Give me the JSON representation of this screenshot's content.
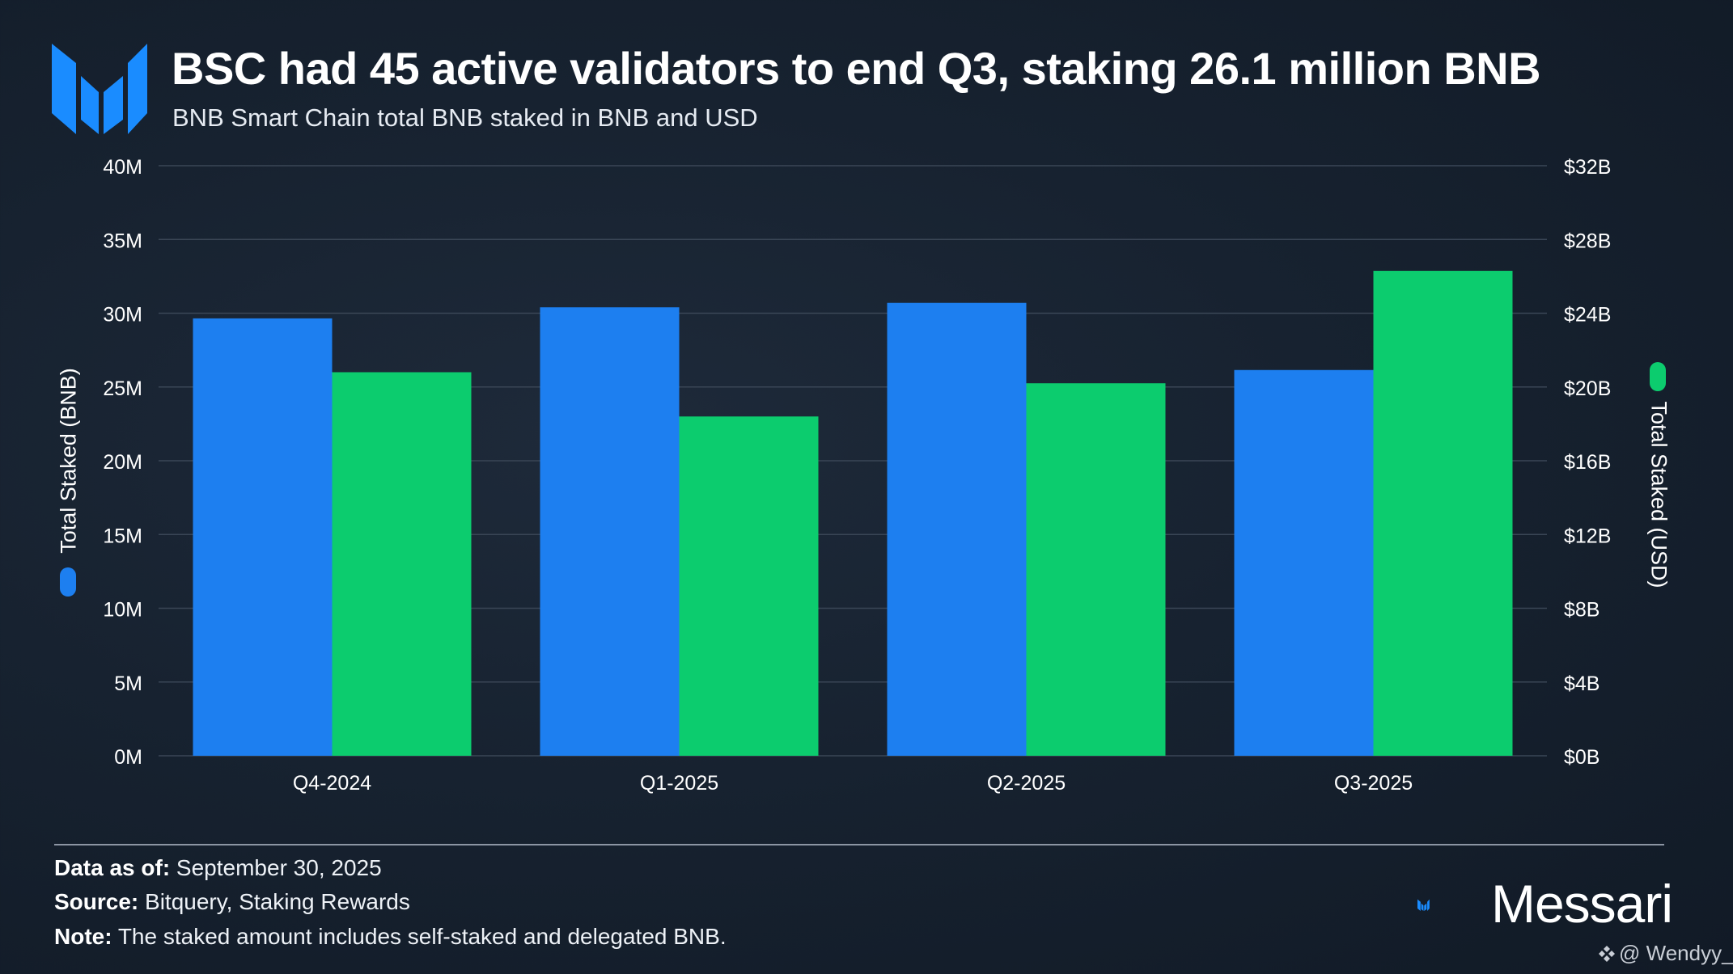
{
  "header": {
    "title": "BSC had 45 active validators to end Q3, staking 26.1 million BNB",
    "subtitle": "BNB Smart Chain total BNB staked in BNB and USD"
  },
  "colors": {
    "bnb_series": "#1d7ff0",
    "usd_series": "#0ccc6e",
    "brand_blue": "#1a8cff",
    "grid": "#3a4656"
  },
  "chart_data": {
    "type": "bar",
    "title": "BSC had 45 active validators to end Q3, staking 26.1 million BNB",
    "subtitle": "BNB Smart Chain total BNB staked in BNB and USD",
    "categories": [
      "Q4-2024",
      "Q1-2025",
      "Q2-2025",
      "Q3-2025"
    ],
    "series": [
      {
        "name": "Total Staked (BNB)",
        "axis": "left",
        "color": "#1d7ff0",
        "values": [
          29650000,
          30400000,
          30700000,
          26150000
        ]
      },
      {
        "name": "Total Staked (USD)",
        "axis": "right",
        "color": "#0ccc6e",
        "values": [
          20800000000,
          18400000000,
          20200000000,
          26300000000
        ]
      }
    ],
    "y_left": {
      "label": "Total Staked (BNB)",
      "ylim": [
        0,
        40000000
      ],
      "ticks": [
        "0M",
        "5M",
        "10M",
        "15M",
        "20M",
        "25M",
        "30M",
        "35M",
        "40M"
      ]
    },
    "y_right": {
      "label": "Total Staked (USD)",
      "ylim": [
        0,
        32000000000
      ],
      "ticks": [
        "$0B",
        "$4B",
        "$8B",
        "$12B",
        "$16B",
        "$20B",
        "$24B",
        "$28B",
        "$32B"
      ]
    },
    "grid": true,
    "legend": "rotated axis titles with color pills (left: blue, right: green)"
  },
  "footer": {
    "data_as_of_label": "Data as of:",
    "data_as_of_value": " September 30, 2025",
    "source_label": "Source:",
    "source_value": " Bitquery, Staking Rewards",
    "note_label": "Note:",
    "note_value": " The staked amount includes self-staked and delegated BNB."
  },
  "brand": {
    "name": "Messari"
  },
  "watermark": {
    "text": "@ Wendyy_"
  }
}
